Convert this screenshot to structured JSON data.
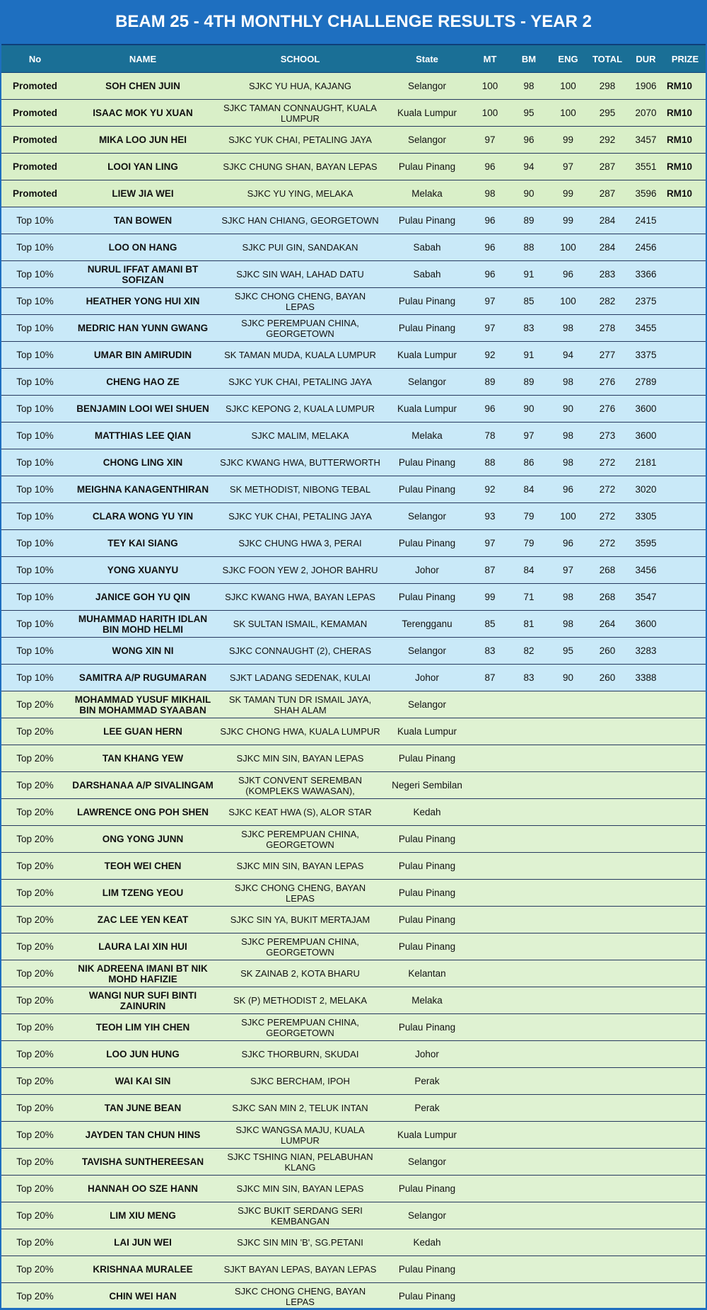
{
  "title": "BEAM 25 - 4TH MONTHLY CHALLENGE RESULTS - YEAR 2",
  "table": {
    "columns": [
      "No",
      "NAME",
      "SCHOOL",
      "State",
      "MT",
      "BM",
      "ENG",
      "TOTAL",
      "DUR",
      "PRIZE"
    ],
    "rows": [
      [
        "Promoted",
        "SOH CHEN JUIN",
        "SJKC YU HUA, KAJANG",
        "Selangor",
        100,
        98,
        100,
        298,
        1906,
        "RM10"
      ],
      [
        "Promoted",
        "ISAAC MOK YU XUAN",
        "SJKC TAMAN CONNAUGHT, KUALA LUMPUR",
        "Kuala Lumpur",
        100,
        95,
        100,
        295,
        2070,
        "RM10"
      ],
      [
        "Promoted",
        "MIKA LOO JUN HEI",
        "SJKC YUK CHAI, PETALING JAYA",
        "Selangor",
        97,
        96,
        99,
        292,
        3457,
        "RM10"
      ],
      [
        "Promoted",
        "LOOI YAN LING",
        "SJKC CHUNG SHAN, BAYAN LEPAS",
        "Pulau Pinang",
        96,
        94,
        97,
        287,
        3551,
        "RM10"
      ],
      [
        "Promoted",
        "LIEW JIA WEI",
        "SJKC YU YING, MELAKA",
        "Melaka",
        98,
        90,
        99,
        287,
        3596,
        "RM10"
      ],
      [
        "Top 10%",
        "TAN BOWEN",
        "SJKC HAN CHIANG, GEORGETOWN",
        "Pulau Pinang",
        96,
        89,
        99,
        284,
        2415
      ],
      [
        "Top 10%",
        "LOO ON HANG",
        "SJKC PUI GIN, SANDAKAN",
        "Sabah",
        96,
        88,
        100,
        284,
        2456
      ],
      [
        "Top 10%",
        "NURUL IFFAT AMANI BT SOFIZAN",
        "SJKC SIN WAH, LAHAD DATU",
        "Sabah",
        96,
        91,
        96,
        283,
        3366
      ],
      [
        "Top 10%",
        "HEATHER YONG HUI XIN",
        "SJKC CHONG CHENG, BAYAN LEPAS",
        "Pulau Pinang",
        97,
        85,
        100,
        282,
        2375
      ],
      [
        "Top 10%",
        "MEDRIC HAN YUNN GWANG",
        "SJKC PEREMPUAN CHINA, GEORGETOWN",
        "Pulau Pinang",
        97,
        83,
        98,
        278,
        3455
      ],
      [
        "Top 10%",
        "UMAR BIN AMIRUDIN",
        "SK TAMAN MUDA, KUALA LUMPUR",
        "Kuala Lumpur",
        92,
        91,
        94,
        277,
        3375
      ],
      [
        "Top 10%",
        "CHENG HAO ZE",
        "SJKC YUK CHAI, PETALING JAYA",
        "Selangor",
        89,
        89,
        98,
        276,
        2789
      ],
      [
        "Top 10%",
        "BENJAMIN LOOI WEI SHUEN",
        "SJKC KEPONG 2, KUALA LUMPUR",
        "Kuala Lumpur",
        96,
        90,
        90,
        276,
        3600
      ],
      [
        "Top 10%",
        "MATTHIAS LEE QIAN",
        "SJKC MALIM, MELAKA",
        "Melaka",
        78,
        97,
        98,
        273,
        3600
      ],
      [
        "Top 10%",
        "CHONG LING XIN",
        "SJKC KWANG HWA, BUTTERWORTH",
        "Pulau Pinang",
        88,
        86,
        98,
        272,
        2181
      ],
      [
        "Top 10%",
        "MEIGHNA KANAGENTHIRAN",
        "SK METHODIST, NIBONG TEBAL",
        "Pulau Pinang",
        92,
        84,
        96,
        272,
        3020
      ],
      [
        "Top 10%",
        "CLARA WONG YU YIN",
        "SJKC YUK CHAI, PETALING JAYA",
        "Selangor",
        93,
        79,
        100,
        272,
        3305
      ],
      [
        "Top 10%",
        "TEY KAI SIANG",
        "SJKC CHUNG HWA 3, PERAI",
        "Pulau Pinang",
        97,
        79,
        96,
        272,
        3595
      ],
      [
        "Top 10%",
        "YONG XUANYU",
        "SJKC FOON YEW 2, JOHOR BAHRU",
        "Johor",
        87,
        84,
        97,
        268,
        3456
      ],
      [
        "Top 10%",
        "JANICE GOH YU QIN",
        "SJKC KWANG HWA, BAYAN LEPAS",
        "Pulau Pinang",
        99,
        71,
        98,
        268,
        3547
      ],
      [
        "Top 10%",
        "MUHAMMAD HARITH IDLAN BIN MOHD HELMI",
        "SK SULTAN ISMAIL, KEMAMAN",
        "Terengganu",
        85,
        81,
        98,
        264,
        3600
      ],
      [
        "Top 10%",
        "WONG XIN NI",
        "SJKC CONNAUGHT (2), CHERAS",
        "Selangor",
        83,
        82,
        95,
        260,
        3283
      ],
      [
        "Top 10%",
        "SAMITRA A/P RUGUMARAN",
        "SJKT LADANG SEDENAK, KULAI",
        "Johor",
        87,
        83,
        90,
        260,
        3388
      ],
      [
        "Top 20%",
        "MOHAMMAD YUSUF MIKHAIL BIN MOHAMMAD SYAABAN",
        "SK TAMAN TUN DR ISMAIL JAYA, SHAH ALAM",
        "Selangor"
      ],
      [
        "Top 20%",
        "LEE GUAN HERN",
        "SJKC CHONG HWA, KUALA LUMPUR",
        "Kuala Lumpur"
      ],
      [
        "Top 20%",
        "TAN KHANG YEW",
        "SJKC MIN SIN, BAYAN LEPAS",
        "Pulau Pinang"
      ],
      [
        "Top 20%",
        "DARSHANAA A/P SIVALINGAM",
        "SJKT CONVENT SEREMBAN (KOMPLEKS WAWASAN),",
        "Negeri Sembilan"
      ],
      [
        "Top 20%",
        "LAWRENCE ONG POH SHEN",
        "SJKC KEAT HWA (S), ALOR STAR",
        "Kedah"
      ],
      [
        "Top 20%",
        "ONG YONG JUNN",
        "SJKC PEREMPUAN CHINA, GEORGETOWN",
        "Pulau Pinang"
      ],
      [
        "Top 20%",
        "TEOH WEI CHEN",
        "SJKC MIN SIN, BAYAN LEPAS",
        "Pulau Pinang"
      ],
      [
        "Top 20%",
        "LIM TZENG YEOU",
        "SJKC CHONG CHENG, BAYAN LEPAS",
        "Pulau Pinang"
      ],
      [
        "Top 20%",
        "ZAC LEE YEN KEAT",
        "SJKC SIN YA, BUKIT MERTAJAM",
        "Pulau Pinang"
      ],
      [
        "Top 20%",
        "LAURA LAI XIN HUI",
        "SJKC PEREMPUAN CHINA, GEORGETOWN",
        "Pulau Pinang"
      ],
      [
        "Top 20%",
        "NIK ADREENA IMANI BT NIK MOHD HAFIZIE",
        "SK ZAINAB 2, KOTA BHARU",
        "Kelantan"
      ],
      [
        "Top 20%",
        "WANGI NUR SUFI BINTI ZAINURIN",
        "SK (P) METHODIST 2, MELAKA",
        "Melaka"
      ],
      [
        "Top 20%",
        "TEOH LIM YIH CHEN",
        "SJKC PEREMPUAN CHINA, GEORGETOWN",
        "Pulau Pinang"
      ],
      [
        "Top 20%",
        "LOO JUN HUNG",
        "SJKC THORBURN, SKUDAI",
        "Johor"
      ],
      [
        "Top 20%",
        "WAI KAI SIN",
        "SJKC BERCHAM, IPOH",
        "Perak"
      ],
      [
        "Top 20%",
        "TAN JUNE BEAN",
        "SJKC SAN MIN 2, TELUK INTAN",
        "Perak"
      ],
      [
        "Top 20%",
        "JAYDEN TAN CHUN HINS",
        "SJKC WANGSA MAJU, KUALA LUMPUR",
        "Kuala Lumpur"
      ],
      [
        "Top 20%",
        "TAVISHA SUNTHEREESAN",
        "SJKC TSHING NIAN, PELABUHAN KLANG",
        "Selangor"
      ],
      [
        "Top 20%",
        "HANNAH OO SZE HANN",
        "SJKC MIN SIN, BAYAN LEPAS",
        "Pulau Pinang"
      ],
      [
        "Top 20%",
        "LIM XIU MENG",
        "SJKC BUKIT SERDANG SERI KEMBANGAN",
        "Selangor"
      ],
      [
        "Top 20%",
        "LAI JUN WEI",
        "SJKC SIN MIN 'B', SG.PETANI",
        "Kedah"
      ],
      [
        "Top 20%",
        "KRISHNAA MURALEE",
        "SJKT BAYAN LEPAS, BAYAN LEPAS",
        "Pulau Pinang"
      ],
      [
        "Top 20%",
        "CHIN WEI HAN",
        "SJKC CHONG CHENG, BAYAN LEPAS",
        "Pulau Pinang"
      ]
    ]
  }
}
